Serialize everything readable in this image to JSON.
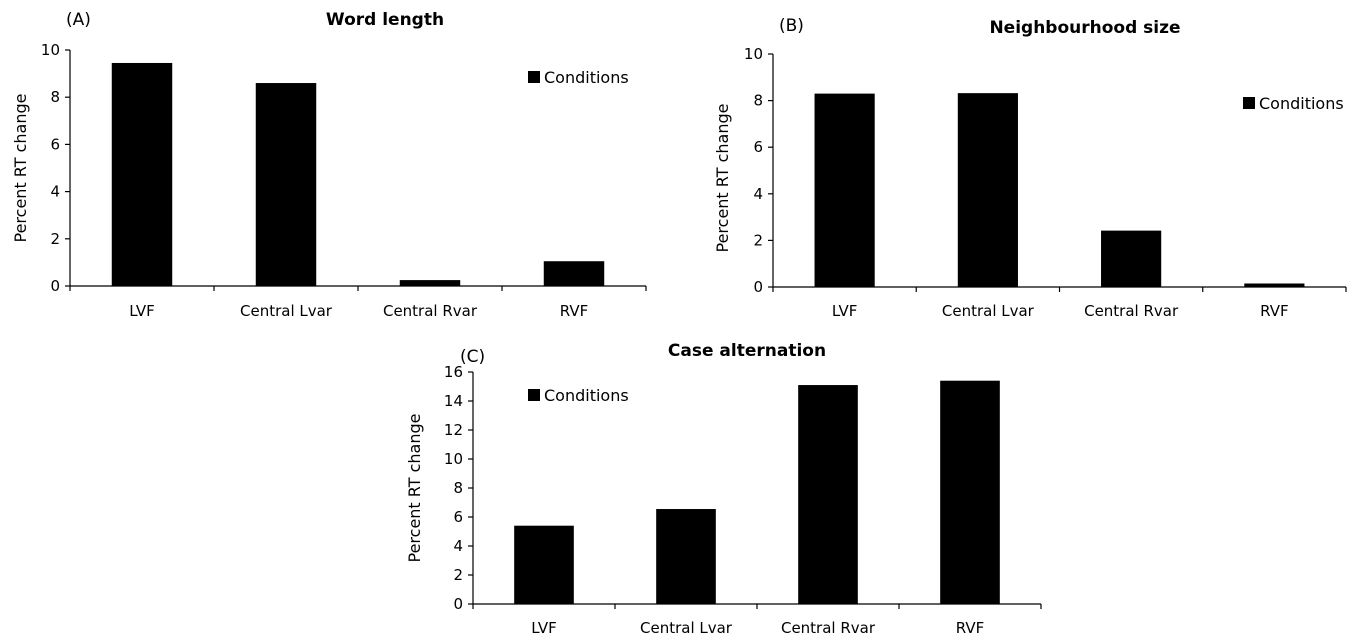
{
  "chart_data": [
    {
      "type": "bar",
      "panel": "(A)",
      "title": "Word length",
      "categories": [
        "LVF",
        "Central Lvar",
        "Central Rvar",
        "RVF"
      ],
      "series": [
        {
          "name": "Conditions",
          "values": [
            9.45,
            8.6,
            0.25,
            1.05
          ]
        }
      ],
      "xlabel": "",
      "ylabel": "Percent RT change",
      "ylim": [
        0,
        10
      ],
      "yticks": [
        "0",
        "2",
        "4",
        "6",
        "8",
        "10"
      ],
      "legend": "top-right",
      "grid": false,
      "bar_color": "#000000"
    },
    {
      "type": "bar",
      "panel": "(B)",
      "title": "Neighbourhood size",
      "categories": [
        "LVF",
        "Central Lvar",
        "Central Rvar",
        "RVF"
      ],
      "series": [
        {
          "name": "Conditions",
          "values": [
            8.3,
            8.32,
            2.42,
            0.15
          ]
        }
      ],
      "xlabel": "",
      "ylabel": "Percent RT change",
      "ylim": [
        0,
        10
      ],
      "yticks": [
        "0",
        "2",
        "4",
        "6",
        "8",
        "10"
      ],
      "legend": "right",
      "grid": false,
      "bar_color": "#000000"
    },
    {
      "type": "bar",
      "panel": "(C)",
      "title": "Case alternation",
      "categories": [
        "LVF",
        "Central Lvar",
        "Central Rvar",
        "RVF"
      ],
      "series": [
        {
          "name": "Conditions",
          "values": [
            5.4,
            6.55,
            15.1,
            15.4
          ]
        }
      ],
      "xlabel": "",
      "ylabel": "Percent RT change",
      "ylim": [
        0,
        16
      ],
      "yticks": [
        "0",
        "2",
        "4",
        "6",
        "8",
        "10",
        "12",
        "14",
        "16"
      ],
      "legend": "top-left",
      "grid": false,
      "bar_color": "#000000"
    }
  ]
}
